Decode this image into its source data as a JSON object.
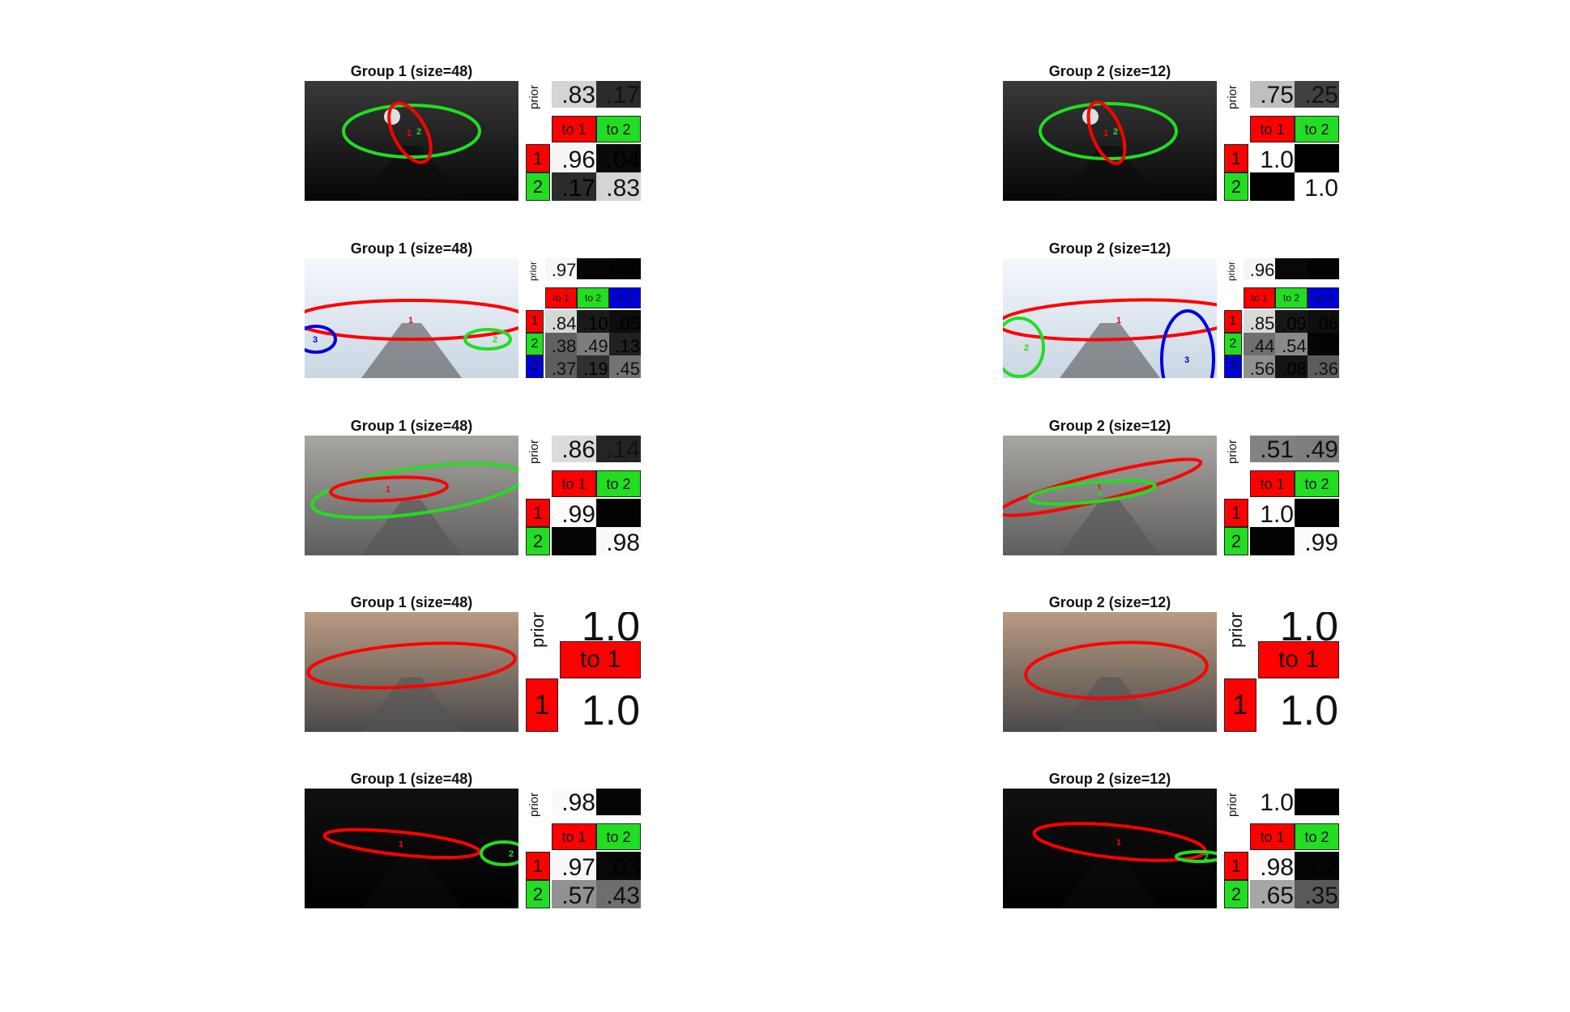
{
  "colors": {
    "state_1": "#ff0000",
    "state_2": "#22dd22",
    "state_3": "#0000dd"
  },
  "panels": [
    {
      "title": "Group 1 (size=48)",
      "scene": "night-tunnel",
      "prior_label": "prior",
      "prior": [
        ".83",
        ".17"
      ],
      "prior_levels": [
        0.83,
        0.17
      ],
      "column_headers": [
        "to 1",
        "to 2"
      ],
      "row_labels": [
        "1",
        "2"
      ],
      "matrix": [
        [
          ".96",
          ".04"
        ],
        [
          ".17",
          ".83"
        ]
      ],
      "matrix_levels": [
        [
          0.96,
          0.04
        ],
        [
          0.17,
          0.83
        ]
      ],
      "markers": [
        "1",
        "2"
      ]
    },
    {
      "title": "Group 2 (size=12)",
      "scene": "night-tunnel",
      "prior_label": "prior",
      "prior": [
        ".75",
        ".25"
      ],
      "prior_levels": [
        0.75,
        0.25
      ],
      "column_headers": [
        "to 1",
        "to 2"
      ],
      "row_labels": [
        "1",
        "2"
      ],
      "matrix": [
        [
          "1.0",
          ""
        ],
        [
          "",
          "1.0"
        ]
      ],
      "matrix_levels": [
        [
          1.0,
          0.0
        ],
        [
          0.0,
          1.0
        ]
      ],
      "markers": [
        "1",
        "2"
      ]
    },
    {
      "title": "Group 1 (size=48)",
      "scene": "bright-day",
      "prior_label": "prior",
      "prior": [
        ".97",
        "",
        ""
      ],
      "prior_levels": [
        0.97,
        0.02,
        0.01
      ],
      "column_headers": [
        "to 1",
        "to 2",
        "to 3"
      ],
      "row_labels": [
        "1",
        "2",
        "3"
      ],
      "matrix": [
        [
          ".84",
          ".10",
          ".05"
        ],
        [
          ".38",
          ".49",
          ".13"
        ],
        [
          ".37",
          ".19",
          ".45"
        ]
      ],
      "matrix_levels": [
        [
          0.84,
          0.1,
          0.05
        ],
        [
          0.38,
          0.49,
          0.13
        ],
        [
          0.37,
          0.19,
          0.45
        ]
      ],
      "markers": [
        "1",
        "2",
        "3"
      ]
    },
    {
      "title": "Group 2 (size=12)",
      "scene": "bright-day",
      "prior_label": "prior",
      "prior": [
        ".96",
        "",
        ""
      ],
      "prior_levels": [
        0.96,
        0.03,
        0.01
      ],
      "column_headers": [
        "to 1",
        "to 2",
        "to 3"
      ],
      "row_labels": [
        "1",
        "2",
        "3"
      ],
      "matrix": [
        [
          ".85",
          ".09",
          ".06"
        ],
        [
          ".44",
          ".54",
          ".02"
        ],
        [
          ".56",
          ".08",
          ".36"
        ]
      ],
      "matrix_levels": [
        [
          0.85,
          0.09,
          0.06
        ],
        [
          0.44,
          0.54,
          0.02
        ],
        [
          0.56,
          0.08,
          0.36
        ]
      ],
      "markers": [
        "1",
        "2",
        "3"
      ]
    },
    {
      "title": "Group 1 (size=48)",
      "scene": "day-road",
      "prior_label": "prior",
      "prior": [
        ".86",
        ".14"
      ],
      "prior_levels": [
        0.86,
        0.14
      ],
      "column_headers": [
        "to 1",
        "to 2"
      ],
      "row_labels": [
        "1",
        "2"
      ],
      "matrix": [
        [
          ".99",
          ""
        ],
        [
          "",
          ".98"
        ]
      ],
      "matrix_levels": [
        [
          0.99,
          0.01
        ],
        [
          0.02,
          0.98
        ]
      ],
      "markers": [
        "1",
        "2"
      ]
    },
    {
      "title": "Group 2 (size=12)",
      "scene": "day-road",
      "prior_label": "prior",
      "prior": [
        ".51",
        ".49"
      ],
      "prior_levels": [
        0.51,
        0.49
      ],
      "column_headers": [
        "to 1",
        "to 2"
      ],
      "row_labels": [
        "1",
        "2"
      ],
      "matrix": [
        [
          "1.0",
          ""
        ],
        [
          "",
          ".99"
        ]
      ],
      "matrix_levels": [
        [
          1.0,
          0.0
        ],
        [
          0.01,
          0.99
        ]
      ],
      "markers": [
        "1",
        "2"
      ]
    },
    {
      "title": "Group 1 (size=48)",
      "scene": "city-street",
      "prior_label": "prior",
      "prior": [
        "1.0"
      ],
      "prior_levels": [
        1.0
      ],
      "column_headers": [
        "to 1"
      ],
      "row_labels": [
        "1"
      ],
      "matrix": [
        [
          "1.0"
        ]
      ],
      "matrix_levels": [
        [
          1.0
        ]
      ],
      "markers": []
    },
    {
      "title": "Group 2 (size=12)",
      "scene": "city-street",
      "prior_label": "prior",
      "prior": [
        "1.0"
      ],
      "prior_levels": [
        1.0
      ],
      "column_headers": [
        "to 1"
      ],
      "row_labels": [
        "1"
      ],
      "matrix": [
        [
          "1.0"
        ]
      ],
      "matrix_levels": [
        [
          1.0
        ]
      ],
      "markers": []
    },
    {
      "title": "Group 1 (size=48)",
      "scene": "night-road",
      "prior_label": "prior",
      "prior": [
        ".98",
        ""
      ],
      "prior_levels": [
        0.98,
        0.02
      ],
      "column_headers": [
        "to 1",
        "to 2"
      ],
      "row_labels": [
        "1",
        "2"
      ],
      "matrix": [
        [
          ".97",
          ".03"
        ],
        [
          ".57",
          ".43"
        ]
      ],
      "matrix_levels": [
        [
          0.97,
          0.03
        ],
        [
          0.57,
          0.43
        ]
      ],
      "markers": [
        "1",
        "2"
      ]
    },
    {
      "title": "Group 2 (size=12)",
      "scene": "night-road",
      "prior_label": "prior",
      "prior": [
        "1.0",
        ""
      ],
      "prior_levels": [
        1.0,
        0.0
      ],
      "column_headers": [
        "to 1",
        "to 2"
      ],
      "row_labels": [
        "1",
        "2"
      ],
      "matrix": [
        [
          ".98",
          ".02"
        ],
        [
          ".65",
          ".35"
        ]
      ],
      "matrix_levels": [
        [
          0.98,
          0.02
        ],
        [
          0.65,
          0.35
        ]
      ],
      "markers": [
        "1",
        "2"
      ]
    }
  ]
}
